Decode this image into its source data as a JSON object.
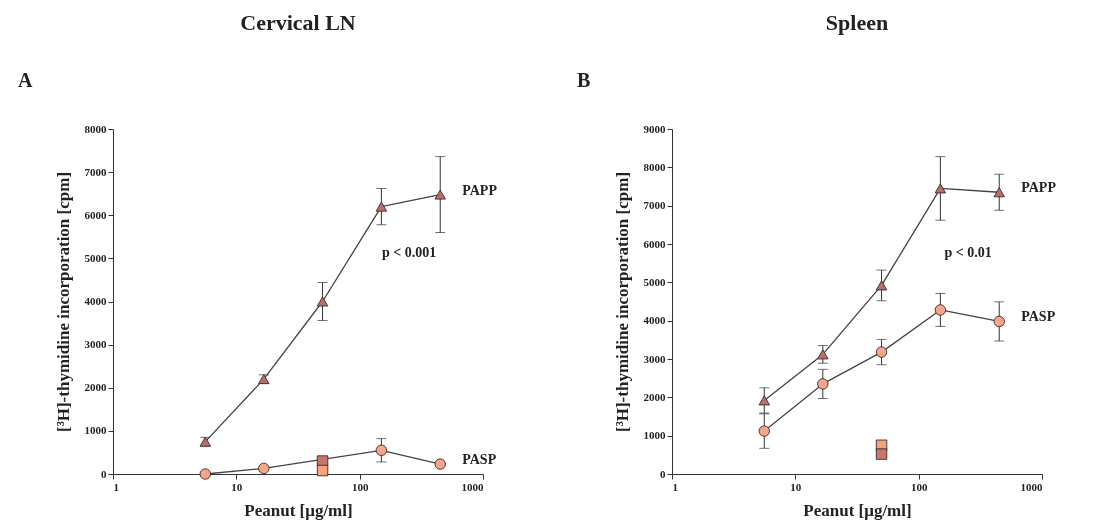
{
  "chart_data": [
    {
      "type": "line",
      "title": "Cervical LN",
      "xlabel": "Peanut [μg/ml]",
      "ylabel": "[³H]-thymidine incorporation [cpm]",
      "annotations": [
        "A",
        "p < 0.001"
      ],
      "log": "x",
      "xlim": [
        1,
        1000
      ],
      "xticks": [
        1,
        10,
        100,
        1000
      ],
      "ylim": [
        0,
        8000
      ],
      "yticks": [
        0,
        1000,
        2000,
        3000,
        4000,
        5000,
        6000,
        7000,
        8000
      ],
      "grid": false,
      "line_style": "solid",
      "series": [
        {
          "name": "PAPP",
          "marker": "triangle",
          "color": "#b86f6c",
          "x": [
            5.6,
            16.7,
            50,
            150,
            450
          ],
          "values": [
            750,
            2200,
            4000,
            6200,
            6480
          ],
          "errors": [
            100,
            100,
            440,
            420,
            880
          ]
        },
        {
          "name": "PASP",
          "marker": "circle",
          "color": "#f4a58a",
          "x": [
            5.6,
            16.7,
            50,
            150,
            450
          ],
          "values": [
            0,
            130,
            null,
            550,
            230
          ],
          "errors": [
            null,
            null,
            null,
            270,
            null
          ]
        },
        {
          "type": "scatter",
          "marker": "square",
          "x": [
            50,
            50
          ],
          "values": [
            300,
            80
          ],
          "colors": [
            "#c8776f",
            "#f2a47f"
          ]
        }
      ]
    },
    {
      "type": "line",
      "title": "Spleen",
      "xlabel": "Peanut [μg/ml]",
      "ylabel": "[³H]-thymidine incorporation [cpm]",
      "annotations": [
        "B",
        "p < 0.01"
      ],
      "log": "x",
      "xlim": [
        1,
        1000
      ],
      "xticks": [
        1,
        10,
        100,
        1000
      ],
      "ylim": [
        0,
        9000
      ],
      "yticks": [
        0,
        1000,
        2000,
        3000,
        4000,
        5000,
        6000,
        7000,
        8000,
        9000
      ],
      "grid": false,
      "line_style": "solid",
      "series": [
        {
          "name": "PAPP",
          "marker": "triangle",
          "color": "#b86f6c",
          "x": [
            5.6,
            16.7,
            50,
            150,
            450
          ],
          "values": [
            1920,
            3120,
            4920,
            7450,
            7350
          ],
          "errors": [
            330,
            230,
            400,
            830,
            470
          ]
        },
        {
          "name": "PASP",
          "marker": "circle",
          "color": "#f4a58a",
          "x": [
            5.6,
            16.7,
            50,
            150,
            450
          ],
          "values": [
            1120,
            2350,
            3180,
            4280,
            3980
          ],
          "errors": [
            450,
            380,
            330,
            430,
            510
          ]
        },
        {
          "type": "scatter",
          "marker": "square",
          "x": [
            50,
            50
          ],
          "values": [
            750,
            520
          ],
          "colors": [
            "#f2a47f",
            "#c8776f"
          ]
        }
      ]
    }
  ]
}
